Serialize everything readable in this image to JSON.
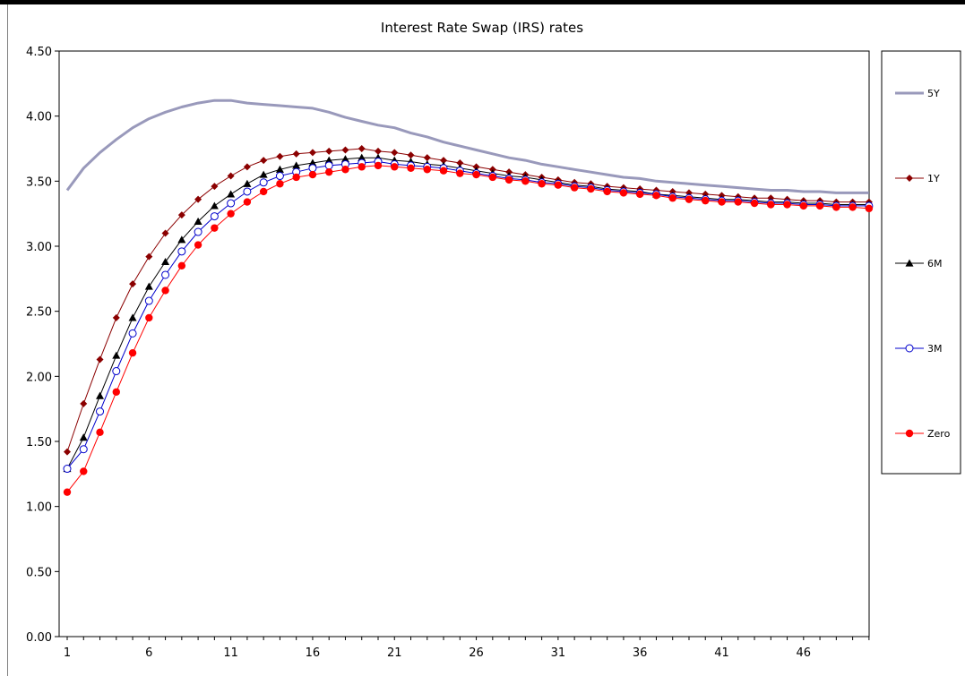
{
  "chart_data": {
    "type": "line",
    "title": "Interest Rate Swap (IRS) rates",
    "xlabel": "",
    "ylabel": "",
    "ylim": [
      0,
      4.5
    ],
    "yticks": [
      "0.00",
      "0.50",
      "1.00",
      "1.50",
      "2.00",
      "2.50",
      "3.00",
      "3.50",
      "4.00",
      "4.50"
    ],
    "xlim": [
      1,
      50
    ],
    "xticks": [
      1,
      6,
      11,
      16,
      21,
      26,
      31,
      36,
      41,
      46
    ],
    "grid": false,
    "legend_position": "right",
    "series": [
      {
        "name": "5Y",
        "color": "#9999bb",
        "marker": "none",
        "values": [
          3.43,
          3.6,
          3.72,
          3.82,
          3.91,
          3.98,
          4.03,
          4.07,
          4.1,
          4.12,
          4.12,
          4.1,
          4.09,
          4.08,
          4.07,
          4.06,
          4.03,
          3.99,
          3.96,
          3.93,
          3.91,
          3.87,
          3.84,
          3.8,
          3.77,
          3.74,
          3.71,
          3.68,
          3.66,
          3.63,
          3.61,
          3.59,
          3.57,
          3.55,
          3.53,
          3.52,
          3.5,
          3.49,
          3.48,
          3.47,
          3.46,
          3.45,
          3.44,
          3.43,
          3.43,
          3.42,
          3.42,
          3.41,
          3.41,
          3.41
        ]
      },
      {
        "name": "1Y",
        "color": "#8b0000",
        "marker": "diamond",
        "values": [
          1.42,
          1.79,
          2.13,
          2.45,
          2.71,
          2.92,
          3.1,
          3.24,
          3.36,
          3.46,
          3.54,
          3.61,
          3.66,
          3.69,
          3.71,
          3.72,
          3.73,
          3.74,
          3.75,
          3.73,
          3.72,
          3.7,
          3.68,
          3.66,
          3.64,
          3.61,
          3.59,
          3.57,
          3.55,
          3.53,
          3.51,
          3.49,
          3.48,
          3.46,
          3.45,
          3.44,
          3.43,
          3.42,
          3.41,
          3.4,
          3.39,
          3.38,
          3.37,
          3.37,
          3.36,
          3.35,
          3.35,
          3.34,
          3.34,
          3.34
        ]
      },
      {
        "name": "6M",
        "color": "#000000",
        "marker": "triangle",
        "values": [
          1.29,
          1.53,
          1.85,
          2.16,
          2.45,
          2.69,
          2.88,
          3.05,
          3.19,
          3.31,
          3.4,
          3.48,
          3.55,
          3.59,
          3.62,
          3.64,
          3.66,
          3.67,
          3.68,
          3.68,
          3.66,
          3.65,
          3.63,
          3.62,
          3.6,
          3.58,
          3.56,
          3.54,
          3.53,
          3.51,
          3.49,
          3.47,
          3.46,
          3.44,
          3.43,
          3.42,
          3.4,
          3.39,
          3.38,
          3.37,
          3.36,
          3.36,
          3.35,
          3.34,
          3.34,
          3.33,
          3.33,
          3.32,
          3.32,
          3.32
        ]
      },
      {
        "name": "3M",
        "color": "#0000cc",
        "marker": "circle-open",
        "values": [
          1.29,
          1.44,
          1.73,
          2.04,
          2.33,
          2.58,
          2.78,
          2.96,
          3.11,
          3.23,
          3.33,
          3.42,
          3.49,
          3.54,
          3.57,
          3.6,
          3.62,
          3.63,
          3.64,
          3.65,
          3.63,
          3.62,
          3.61,
          3.6,
          3.58,
          3.56,
          3.54,
          3.52,
          3.51,
          3.49,
          3.48,
          3.46,
          3.45,
          3.43,
          3.42,
          3.41,
          3.4,
          3.38,
          3.37,
          3.36,
          3.35,
          3.35,
          3.34,
          3.33,
          3.33,
          3.32,
          3.32,
          3.31,
          3.31,
          3.31
        ]
      },
      {
        "name": "Zero",
        "color": "#ff0000",
        "marker": "circle-filled",
        "values": [
          1.11,
          1.27,
          1.57,
          1.88,
          2.18,
          2.45,
          2.66,
          2.85,
          3.01,
          3.14,
          3.25,
          3.34,
          3.42,
          3.48,
          3.53,
          3.55,
          3.57,
          3.59,
          3.61,
          3.62,
          3.61,
          3.6,
          3.59,
          3.58,
          3.56,
          3.55,
          3.53,
          3.51,
          3.5,
          3.48,
          3.47,
          3.45,
          3.44,
          3.42,
          3.41,
          3.4,
          3.39,
          3.37,
          3.36,
          3.35,
          3.34,
          3.34,
          3.33,
          3.32,
          3.32,
          3.31,
          3.31,
          3.3,
          3.3,
          3.29
        ]
      }
    ]
  }
}
